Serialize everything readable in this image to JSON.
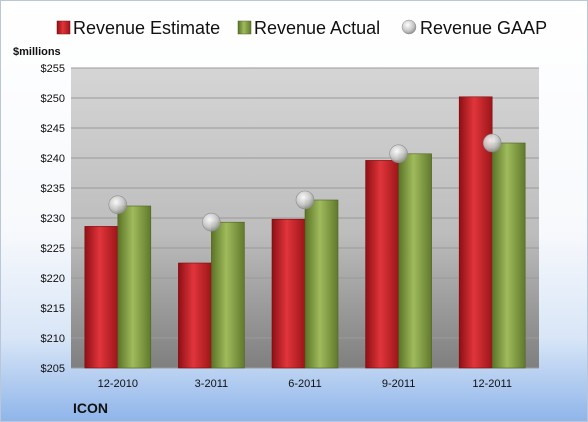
{
  "chart_data": {
    "type": "bar",
    "ylabel": "$millions",
    "ylim": [
      205,
      255
    ],
    "yticks": [
      "$205",
      "$210",
      "$215",
      "$220",
      "$225",
      "$230",
      "$235",
      "$240",
      "$245",
      "$250",
      "$255"
    ],
    "categories": [
      "12-2010",
      "3-2011",
      "6-2011",
      "9-2011",
      "12-2011"
    ],
    "series": [
      {
        "name": "Revenue Estimate",
        "kind": "bar",
        "color": "#d0252b",
        "values": [
          228.6,
          222.5,
          229.8,
          239.6,
          250.2
        ]
      },
      {
        "name": "Revenue Actual",
        "kind": "bar",
        "color": "#8aa64a",
        "values": [
          232.0,
          229.3,
          233.0,
          240.7,
          242.5
        ]
      },
      {
        "name": "Revenue GAAP",
        "kind": "marker",
        "color": "#c9c9c9",
        "values": [
          232.2,
          229.3,
          233.0,
          240.7,
          242.5
        ]
      }
    ],
    "legend_position": "top",
    "grid": true,
    "company": "ICON"
  }
}
